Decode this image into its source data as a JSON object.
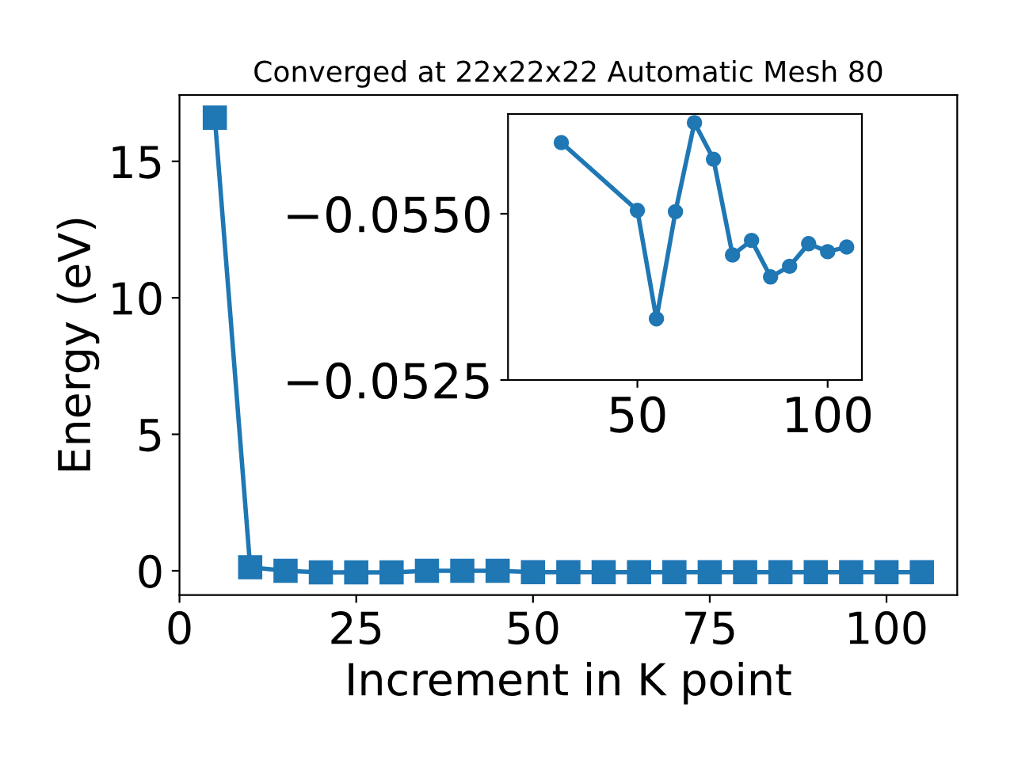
{
  "chart_data": [
    {
      "type": "line",
      "title": "Converged at 22x22x22 Automatic Mesh 80",
      "xlabel": "Increment in K point",
      "ylabel": "Energy (eV)",
      "marker": "square",
      "grid": false,
      "xlim": [
        0,
        110
      ],
      "ylim": [
        -0.89,
        17.43
      ],
      "xticks": [
        0,
        25,
        50,
        75,
        100
      ],
      "yticks": [
        0,
        5,
        10,
        15
      ],
      "series": [
        {
          "color": "#1f77b4",
          "x": [
            5,
            10,
            15,
            20,
            25,
            30,
            35,
            40,
            45,
            50,
            55,
            60,
            65,
            70,
            75,
            80,
            85,
            90,
            95,
            100,
            105
          ],
          "values": [
            16.6,
            0.13,
            0.0,
            -0.06,
            -0.06,
            -0.06,
            0.0,
            0.0,
            0.0,
            -0.05,
            -0.05,
            -0.05,
            -0.05,
            -0.05,
            -0.05,
            -0.05,
            -0.05,
            -0.05,
            -0.05,
            -0.05,
            -0.05
          ]
        }
      ]
    },
    {
      "type": "line",
      "marker": "circle",
      "grid": false,
      "xlim": [
        16,
        109
      ],
      "ylim": [
        -0.0525,
        -0.0565
      ],
      "xticks": [
        50,
        100
      ],
      "yticks": [
        {
          "value": -0.055,
          "label": "−0.0550"
        },
        {
          "value": -0.0525,
          "label": "−0.0525"
        }
      ],
      "series": [
        {
          "color": "#1f77b4",
          "x": [
            30,
            50,
            55,
            60,
            65,
            70,
            75,
            80,
            85,
            90,
            95,
            100,
            105
          ],
          "values": [
            -0.05607,
            -0.05505,
            -0.05342,
            -0.05503,
            -0.05637,
            -0.05582,
            -0.05438,
            -0.0546,
            -0.05405,
            -0.05421,
            -0.05455,
            -0.05443,
            -0.0545
          ]
        }
      ]
    }
  ]
}
